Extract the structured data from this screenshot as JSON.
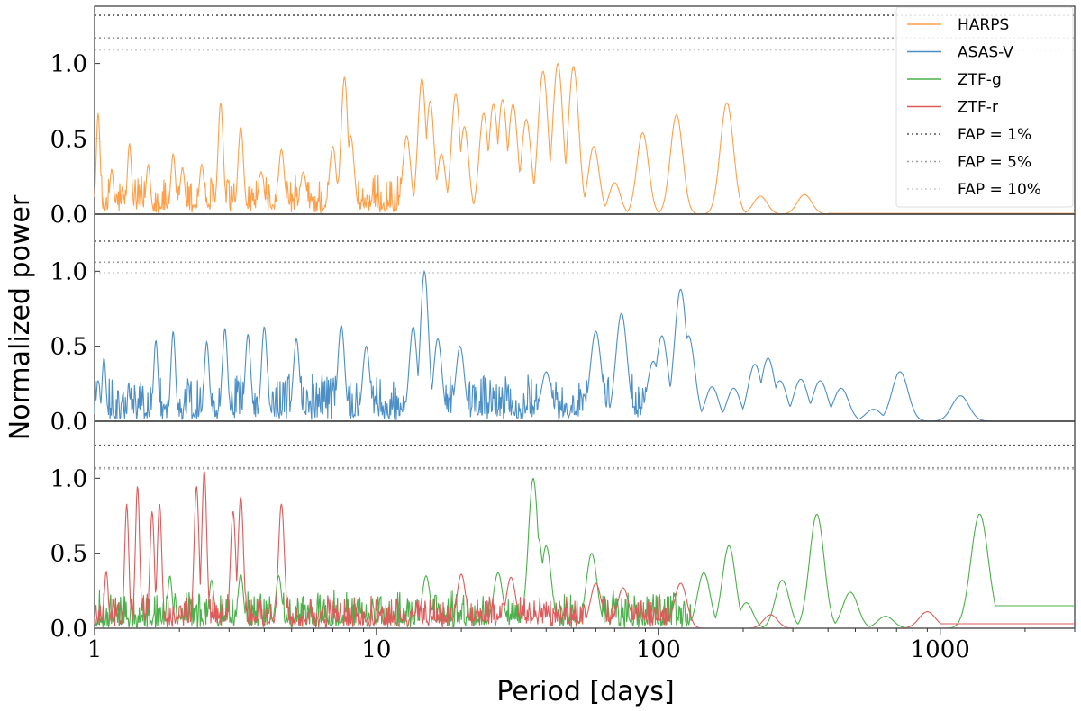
{
  "chart_data": {
    "type": "line",
    "x_scale": "log",
    "xlim": [
      1,
      3000
    ],
    "xticks": [
      {
        "value": 1,
        "label": "1"
      },
      {
        "value": 10,
        "label": "10"
      },
      {
        "value": 100,
        "label": "100"
      },
      {
        "value": 1000,
        "label": "1000"
      }
    ],
    "xlabel": "Period [days]",
    "ylabel": "Normalized power",
    "legend": {
      "placement": "top-right",
      "entries": [
        {
          "label": "HARPS",
          "color": "#ff9f4a",
          "style": "solid"
        },
        {
          "label": "ASAS-V",
          "color": "#4b8fc6",
          "style": "solid"
        },
        {
          "label": "ZTF-g",
          "color": "#4ab04a",
          "style": "solid"
        },
        {
          "label": "ZTF-r",
          "color": "#df5a5a",
          "style": "solid"
        },
        {
          "label": "FAP = 1%",
          "color": "#555555",
          "style": "dotted"
        },
        {
          "label": "FAP = 5%",
          "color": "#999999",
          "style": "dotted"
        },
        {
          "label": "FAP = 10%",
          "color": "#cccccc",
          "style": "dotted"
        }
      ]
    },
    "panels": [
      {
        "id": "top",
        "ylim": [
          0,
          1.38
        ],
        "yticks": [
          {
            "value": 0,
            "label": "0.0"
          },
          {
            "value": 0.5,
            "label": "0.5"
          },
          {
            "value": 1.0,
            "label": "1.0"
          }
        ],
        "fap": [
          1.32,
          1.17,
          1.09
        ],
        "series": [
          {
            "name": "HARPS",
            "color": "#ff9f4a",
            "peaks": [
              [
                1.03,
                0.67
              ],
              [
                1.15,
                0.3
              ],
              [
                1.33,
                0.47
              ],
              [
                1.55,
                0.33
              ],
              [
                1.9,
                0.4
              ],
              [
                2.05,
                0.31
              ],
              [
                2.4,
                0.33
              ],
              [
                2.8,
                0.74
              ],
              [
                3.3,
                0.58
              ],
              [
                3.9,
                0.28
              ],
              [
                4.6,
                0.43
              ],
              [
                5.5,
                0.28
              ],
              [
                7.0,
                0.45
              ],
              [
                7.7,
                0.91
              ],
              [
                8.1,
                0.52
              ],
              [
                12.8,
                0.52
              ],
              [
                14.5,
                0.9
              ],
              [
                15.5,
                0.75
              ],
              [
                17,
                0.4
              ],
              [
                19.1,
                0.8
              ],
              [
                20.5,
                0.58
              ],
              [
                24,
                0.67
              ],
              [
                26,
                0.73
              ],
              [
                28,
                0.76
              ],
              [
                30.5,
                0.73
              ],
              [
                34,
                0.63
              ],
              [
                39,
                0.95
              ],
              [
                44,
                1.0
              ],
              [
                50,
                0.98
              ],
              [
                59,
                0.45
              ],
              [
                70,
                0.21
              ],
              [
                88,
                0.54
              ],
              [
                116,
                0.66
              ],
              [
                175,
                0.74
              ],
              [
                230,
                0.12
              ],
              [
                330,
                0.13
              ]
            ],
            "noise": {
              "from": 1,
              "to": 12.8,
              "base": 0.04,
              "amp": 0.23
            },
            "tail": {
              "from": 400,
              "level": 0.005
            }
          }
        ]
      },
      {
        "id": "middle",
        "ylim": [
          0,
          1.38
        ],
        "yticks": [
          {
            "value": 0,
            "label": "0.0"
          },
          {
            "value": 0.5,
            "label": "0.5"
          },
          {
            "value": 1.0,
            "label": "1.0"
          }
        ],
        "fap": [
          1.2,
          1.06,
          0.99
        ],
        "series": [
          {
            "name": "ASAS-V",
            "color": "#4b8fc6",
            "peaks": [
              [
                1.03,
                0.27
              ],
              [
                1.08,
                0.42
              ],
              [
                1.65,
                0.54
              ],
              [
                1.9,
                0.6
              ],
              [
                2.5,
                0.53
              ],
              [
                2.9,
                0.62
              ],
              [
                3.5,
                0.58
              ],
              [
                4.0,
                0.63
              ],
              [
                5.2,
                0.55
              ],
              [
                7.5,
                0.64
              ],
              [
                9.2,
                0.5
              ],
              [
                13.5,
                0.63
              ],
              [
                14.8,
                1.0
              ],
              [
                16.5,
                0.55
              ],
              [
                19.8,
                0.5
              ],
              [
                40,
                0.33
              ],
              [
                60,
                0.6
              ],
              [
                74,
                0.72
              ],
              [
                96,
                0.4
              ],
              [
                103,
                0.57
              ],
              [
                120,
                0.88
              ],
              [
                128,
                0.57
              ],
              [
                155,
                0.23
              ],
              [
                185,
                0.22
              ],
              [
                220,
                0.38
              ],
              [
                245,
                0.42
              ],
              [
                270,
                0.27
              ],
              [
                320,
                0.28
              ],
              [
                375,
                0.27
              ],
              [
                445,
                0.22
              ],
              [
                580,
                0.08
              ],
              [
                720,
                0.33
              ],
              [
                1180,
                0.17
              ]
            ],
            "noise": {
              "from": 1,
              "to": 130,
              "base": 0.05,
              "amp": 0.28
            },
            "tail": {
              "from": 1500,
              "level": 0.0
            }
          }
        ]
      },
      {
        "id": "bottom",
        "ylim": [
          0,
          1.38
        ],
        "yticks": [
          {
            "value": 0,
            "label": "0.0"
          },
          {
            "value": 0.5,
            "label": "0.5"
          },
          {
            "value": 1.0,
            "label": "1.0"
          }
        ],
        "fap": [
          1.22,
          1.07,
          1.06
        ],
        "series": [
          {
            "name": "ZTF-g",
            "color": "#4ab04a",
            "peaks": [
              [
                1.85,
                0.35
              ],
              [
                2.6,
                0.32
              ],
              [
                3.3,
                0.36
              ],
              [
                4.5,
                0.35
              ],
              [
                15,
                0.35
              ],
              [
                27,
                0.37
              ],
              [
                36,
                1.0
              ],
              [
                37.5,
                0.6
              ],
              [
                40,
                0.55
              ],
              [
                58,
                0.5
              ],
              [
                145,
                0.37
              ],
              [
                178,
                0.55
              ],
              [
                205,
                0.17
              ],
              [
                275,
                0.32
              ],
              [
                365,
                0.76
              ],
              [
                480,
                0.24
              ],
              [
                640,
                0.08
              ],
              [
                1380,
                0.76
              ]
            ],
            "noise": {
              "from": 1,
              "to": 130,
              "base": 0.04,
              "amp": 0.22
            },
            "tail": {
              "from": 1380,
              "level": 0.15
            }
          },
          {
            "name": "ZTF-r",
            "color": "#df5a5a",
            "peaks": [
              [
                1.1,
                0.38
              ],
              [
                1.3,
                0.83
              ],
              [
                1.42,
                0.95
              ],
              [
                1.6,
                0.78
              ],
              [
                1.7,
                0.83
              ],
              [
                2.3,
                0.95
              ],
              [
                2.45,
                1.05
              ],
              [
                3.1,
                0.78
              ],
              [
                3.3,
                0.88
              ],
              [
                4.6,
                0.83
              ],
              [
                20,
                0.36
              ],
              [
                30,
                0.34
              ],
              [
                60,
                0.3
              ],
              [
                75,
                0.27
              ],
              [
                120,
                0.3
              ],
              [
                250,
                0.09
              ],
              [
                900,
                0.11
              ]
            ],
            "noise": {
              "from": 1,
              "to": 110,
              "base": 0.06,
              "amp": 0.18
            },
            "tail": {
              "from": 1000,
              "level": 0.03
            }
          }
        ]
      }
    ]
  }
}
